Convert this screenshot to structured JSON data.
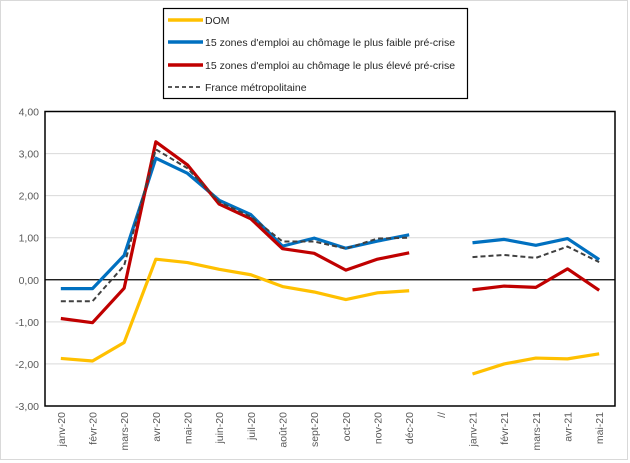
{
  "chart_data": {
    "type": "line",
    "title": "",
    "xlabel": "",
    "ylabel": "",
    "ylim": [
      -3,
      4
    ],
    "yticks": [
      4,
      3,
      2,
      1,
      0,
      -1,
      -2,
      -3
    ],
    "ytick_labels": [
      "4,00",
      "3,00",
      "2,00",
      "1,00",
      "0,00",
      "-1,00",
      "-2,00",
      "-3,00"
    ],
    "grid": true,
    "legend_position": "top-center",
    "categories": [
      "janv-20",
      "févr-20",
      "mars-20",
      "avr-20",
      "mai-20",
      "juin-20",
      "juil-20",
      "août-20",
      "sept-20",
      "oct-20",
      "nov-20",
      "déc-20",
      "//",
      "janv-21",
      "févr-21",
      "mars-21",
      "avr-21",
      "mai-21"
    ],
    "series": [
      {
        "name": "DOM",
        "color": "#FFC000",
        "style": "solid",
        "values": [
          -1.87,
          -1.93,
          -1.49,
          0.49,
          0.41,
          0.25,
          0.12,
          -0.16,
          -0.29,
          -0.47,
          -0.31,
          -0.26,
          null,
          -2.24,
          -2.0,
          -1.86,
          -1.88,
          -1.76
        ]
      },
      {
        "name": "15 zones d'emploi au chômage le plus faible pré-crise",
        "color": "#0070C0",
        "style": "solid",
        "values": [
          -0.21,
          -0.21,
          0.58,
          2.89,
          2.53,
          1.89,
          1.55,
          0.8,
          0.99,
          0.75,
          0.92,
          1.07,
          null,
          0.88,
          0.96,
          0.82,
          0.98,
          0.48
        ]
      },
      {
        "name": "15 zones d'emploi au chômage le plus élevé pré-crise",
        "color": "#C00000",
        "style": "solid",
        "values": [
          -0.92,
          -1.02,
          -0.2,
          3.28,
          2.73,
          1.8,
          1.45,
          0.74,
          0.63,
          0.23,
          0.49,
          0.64,
          null,
          -0.24,
          -0.15,
          -0.18,
          0.26,
          -0.25
        ]
      },
      {
        "name": "France métropolitaine",
        "color": "#404040",
        "style": "dashed",
        "values": [
          -0.51,
          -0.51,
          0.34,
          3.1,
          2.65,
          1.85,
          1.5,
          0.91,
          0.91,
          0.74,
          0.98,
          1.0,
          null,
          0.54,
          0.59,
          0.52,
          0.79,
          0.42
        ]
      }
    ]
  }
}
